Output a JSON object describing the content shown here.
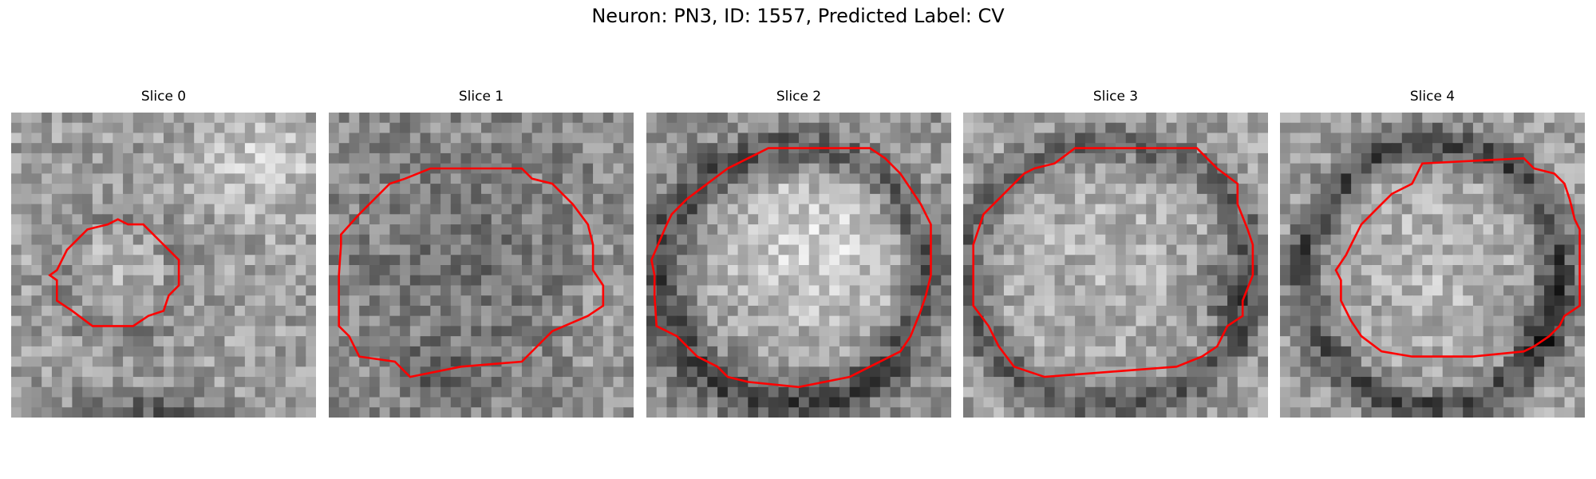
{
  "figure": {
    "title": "Neuron: PN3, ID: 1557, Predicted Label: CV"
  },
  "panels": [
    {
      "title": "Slice 0"
    },
    {
      "title": "Slice 1"
    },
    {
      "title": "Slice 2"
    },
    {
      "title": "Slice 3"
    },
    {
      "title": "Slice 4"
    }
  ],
  "colors": {
    "contour": "#ff0000",
    "background": "#ffffff"
  }
}
